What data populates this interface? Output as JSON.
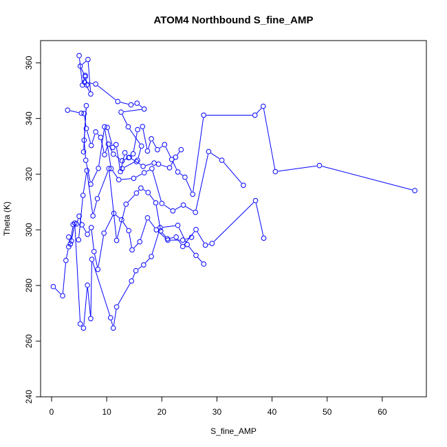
{
  "chart_data": {
    "type": "line",
    "title": "ATOM4 Northbound S_fine_AMP",
    "xlabel": "S_fine_AMP",
    "ylabel": "Theta (K)",
    "xlim": [
      -2,
      68
    ],
    "ylim": [
      240,
      368
    ],
    "xticks": [
      0,
      10,
      20,
      30,
      40,
      50,
      60
    ],
    "yticks": [
      240,
      260,
      280,
      300,
      320,
      340,
      360
    ],
    "grid": false,
    "color": "#0000ff",
    "marker": "open-circle",
    "series": [
      {
        "name": "",
        "x": [
          5.0,
          5.6,
          6.1,
          6.4,
          6.1,
          5.2,
          6.6,
          7.1,
          6.0,
          8.0,
          12.0,
          14.4,
          15.5,
          16.8,
          12.6,
          13.9,
          16.3,
          15.6,
          12.8
        ],
        "y": [
          362.6,
          352.0,
          355.5,
          352.0,
          355.0,
          358.8,
          361.2,
          348.8,
          353.0,
          352.4,
          346.1,
          344.9,
          345.5,
          343.4,
          342.3,
          337.0,
          330.1,
          325.0,
          322.0
        ]
      },
      {
        "name": "",
        "x": [
          2.9,
          5.4,
          5.9,
          6.3,
          7.2,
          8.0,
          8.9,
          9.6,
          10.3,
          11.2,
          12.8,
          14.1,
          15.4,
          16.6,
          18.6,
          19.4,
          21.4,
          22.5,
          23.5
        ],
        "y": [
          343.0,
          341.9,
          341.8,
          336.4,
          330.3,
          335.2,
          333.2,
          327.0,
          330.8,
          327.2,
          324.8,
          326.0,
          324.5,
          322.8,
          324.0,
          323.6,
          322.3,
          326.1,
          328.8
        ]
      },
      {
        "name": "",
        "x": [
          5.8,
          6.3,
          5.9,
          6.2,
          7.1,
          8.5,
          9.6,
          10.8,
          12.2,
          14.9,
          16.8,
          18.2,
          20.0,
          22.0,
          23.9,
          26.1,
          28.5,
          30.9,
          34.8
        ],
        "y": [
          328.0,
          344.6,
          332.2,
          325.0,
          316.4,
          322.1,
          337.0,
          322.0,
          318.0,
          318.5,
          320.5,
          322.0,
          309.5,
          306.8,
          308.9,
          306.3,
          328.1,
          325.0,
          316.0
        ]
      },
      {
        "name": "",
        "x": [
          4.9,
          5.7,
          6.4,
          7.5,
          8.3,
          10.4,
          11.8,
          13.5,
          15.4,
          16.2,
          17.5,
          18.9,
          19.8,
          21.0,
          22.6,
          23.8,
          26.2,
          27.9,
          29.1,
          37.0,
          38.5
        ],
        "y": [
          296.4,
          312.4,
          321.3,
          305.0,
          311.2,
          322.0,
          296.2,
          309.2,
          313.2,
          315.0,
          313.4,
          309.7,
          299.6,
          296.8,
          297.4,
          294.0,
          300.1,
          294.5,
          295.1,
          310.5,
          297.0
        ]
      },
      {
        "name": "",
        "x": [
          3.1,
          3.4,
          3.9,
          4.5,
          5.0,
          5.5,
          6.5,
          7.2,
          7.7,
          8.4,
          9.5,
          11.3,
          12.7,
          14.0,
          14.6,
          16.0,
          17.4,
          19.0,
          21.1,
          23.8,
          25.4
        ],
        "y": [
          297.4,
          294.9,
          301.9,
          302.1,
          304.9,
          301.8,
          298.4,
          300.8,
          292.2,
          285.8,
          298.8,
          305.9,
          303.6,
          299.7,
          292.8,
          295.7,
          304.3,
          300.0,
          296.3,
          296.3,
          297.3
        ]
      },
      {
        "name": "",
        "x": [
          0.3,
          2.0,
          2.6,
          3.1,
          3.6,
          4.2,
          5.2,
          5.8,
          6.5,
          7.1,
          7.3,
          10.7,
          11.2,
          11.8,
          14.5,
          15.3,
          16.7,
          18.1,
          19.7,
          22.9,
          24.6,
          26.2,
          27.6
        ],
        "y": [
          279.6,
          276.3,
          289.0,
          293.9,
          296.0,
          302.4,
          266.2,
          264.7,
          280.1,
          268.1,
          289.4,
          268.4,
          264.7,
          272.3,
          281.6,
          285.3,
          287.4,
          290.4,
          300.8,
          301.6,
          294.7,
          290.8,
          287.7
        ]
      },
      {
        "name": "",
        "x": [
          10.1,
          11.1,
          11.7,
          12.5,
          13.3,
          14.0,
          14.8,
          15.6,
          16.5,
          17.4,
          18.1,
          19.2,
          20.5,
          21.8,
          22.9,
          24.2,
          25.6,
          27.6,
          36.9,
          38.4,
          40.6,
          48.6,
          65.9
        ],
        "y": [
          336.8,
          329.6,
          330.6,
          320.9,
          327.7,
          325.9,
          327.3,
          336.0,
          337.1,
          328.3,
          332.7,
          328.8,
          330.6,
          325.3,
          320.8,
          318.9,
          312.8,
          341.2,
          341.2,
          344.4,
          320.9,
          323.1,
          314.1
        ]
      }
    ]
  }
}
